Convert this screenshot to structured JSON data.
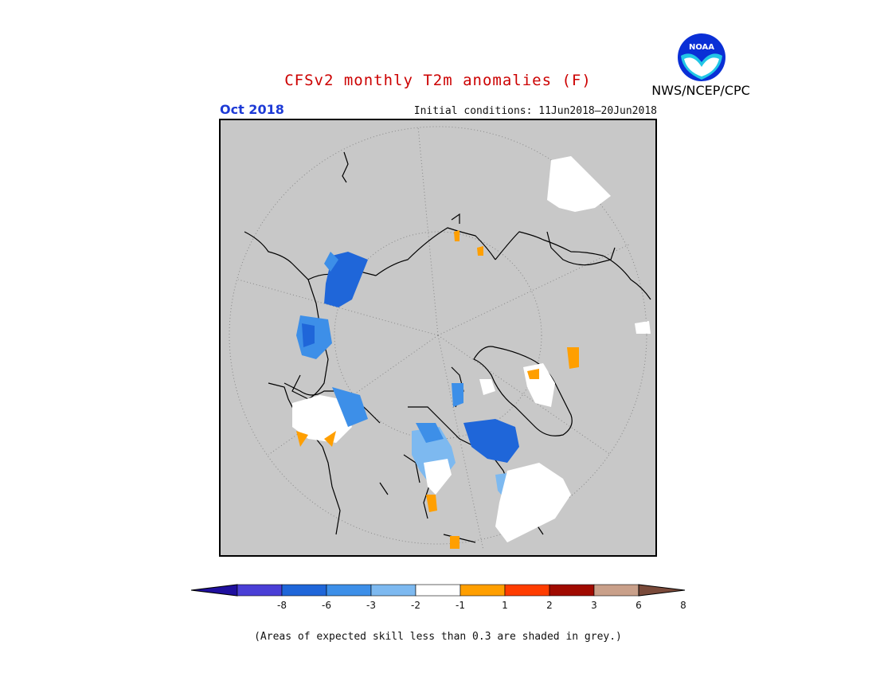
{
  "title": "CFSv2 monthly T2m anomalies (F)",
  "valid_month": "Oct 2018",
  "initial_conditions": "Initial conditions: 11Jun2018–20Jun2018",
  "agency": "NWS/NCEP/CPC",
  "logo": {
    "text": "NOAA",
    "icon": "noaa-logo-icon"
  },
  "colorbar": {
    "colors": [
      "#1f0f9e",
      "#4a3fd6",
      "#1f66d9",
      "#3d8fe8",
      "#7db9f0",
      "#ffffff",
      "#ff9f00",
      "#ff3d00",
      "#a00a00",
      "#c9a08a",
      "#7a4a3a"
    ],
    "tick_labels": [
      "-8",
      "-6",
      "-3",
      "-2",
      "-1",
      "1",
      "2",
      "3",
      "6",
      "8"
    ]
  },
  "footnote": "(Areas of expected skill less than 0.3 are shaded in grey.)"
}
